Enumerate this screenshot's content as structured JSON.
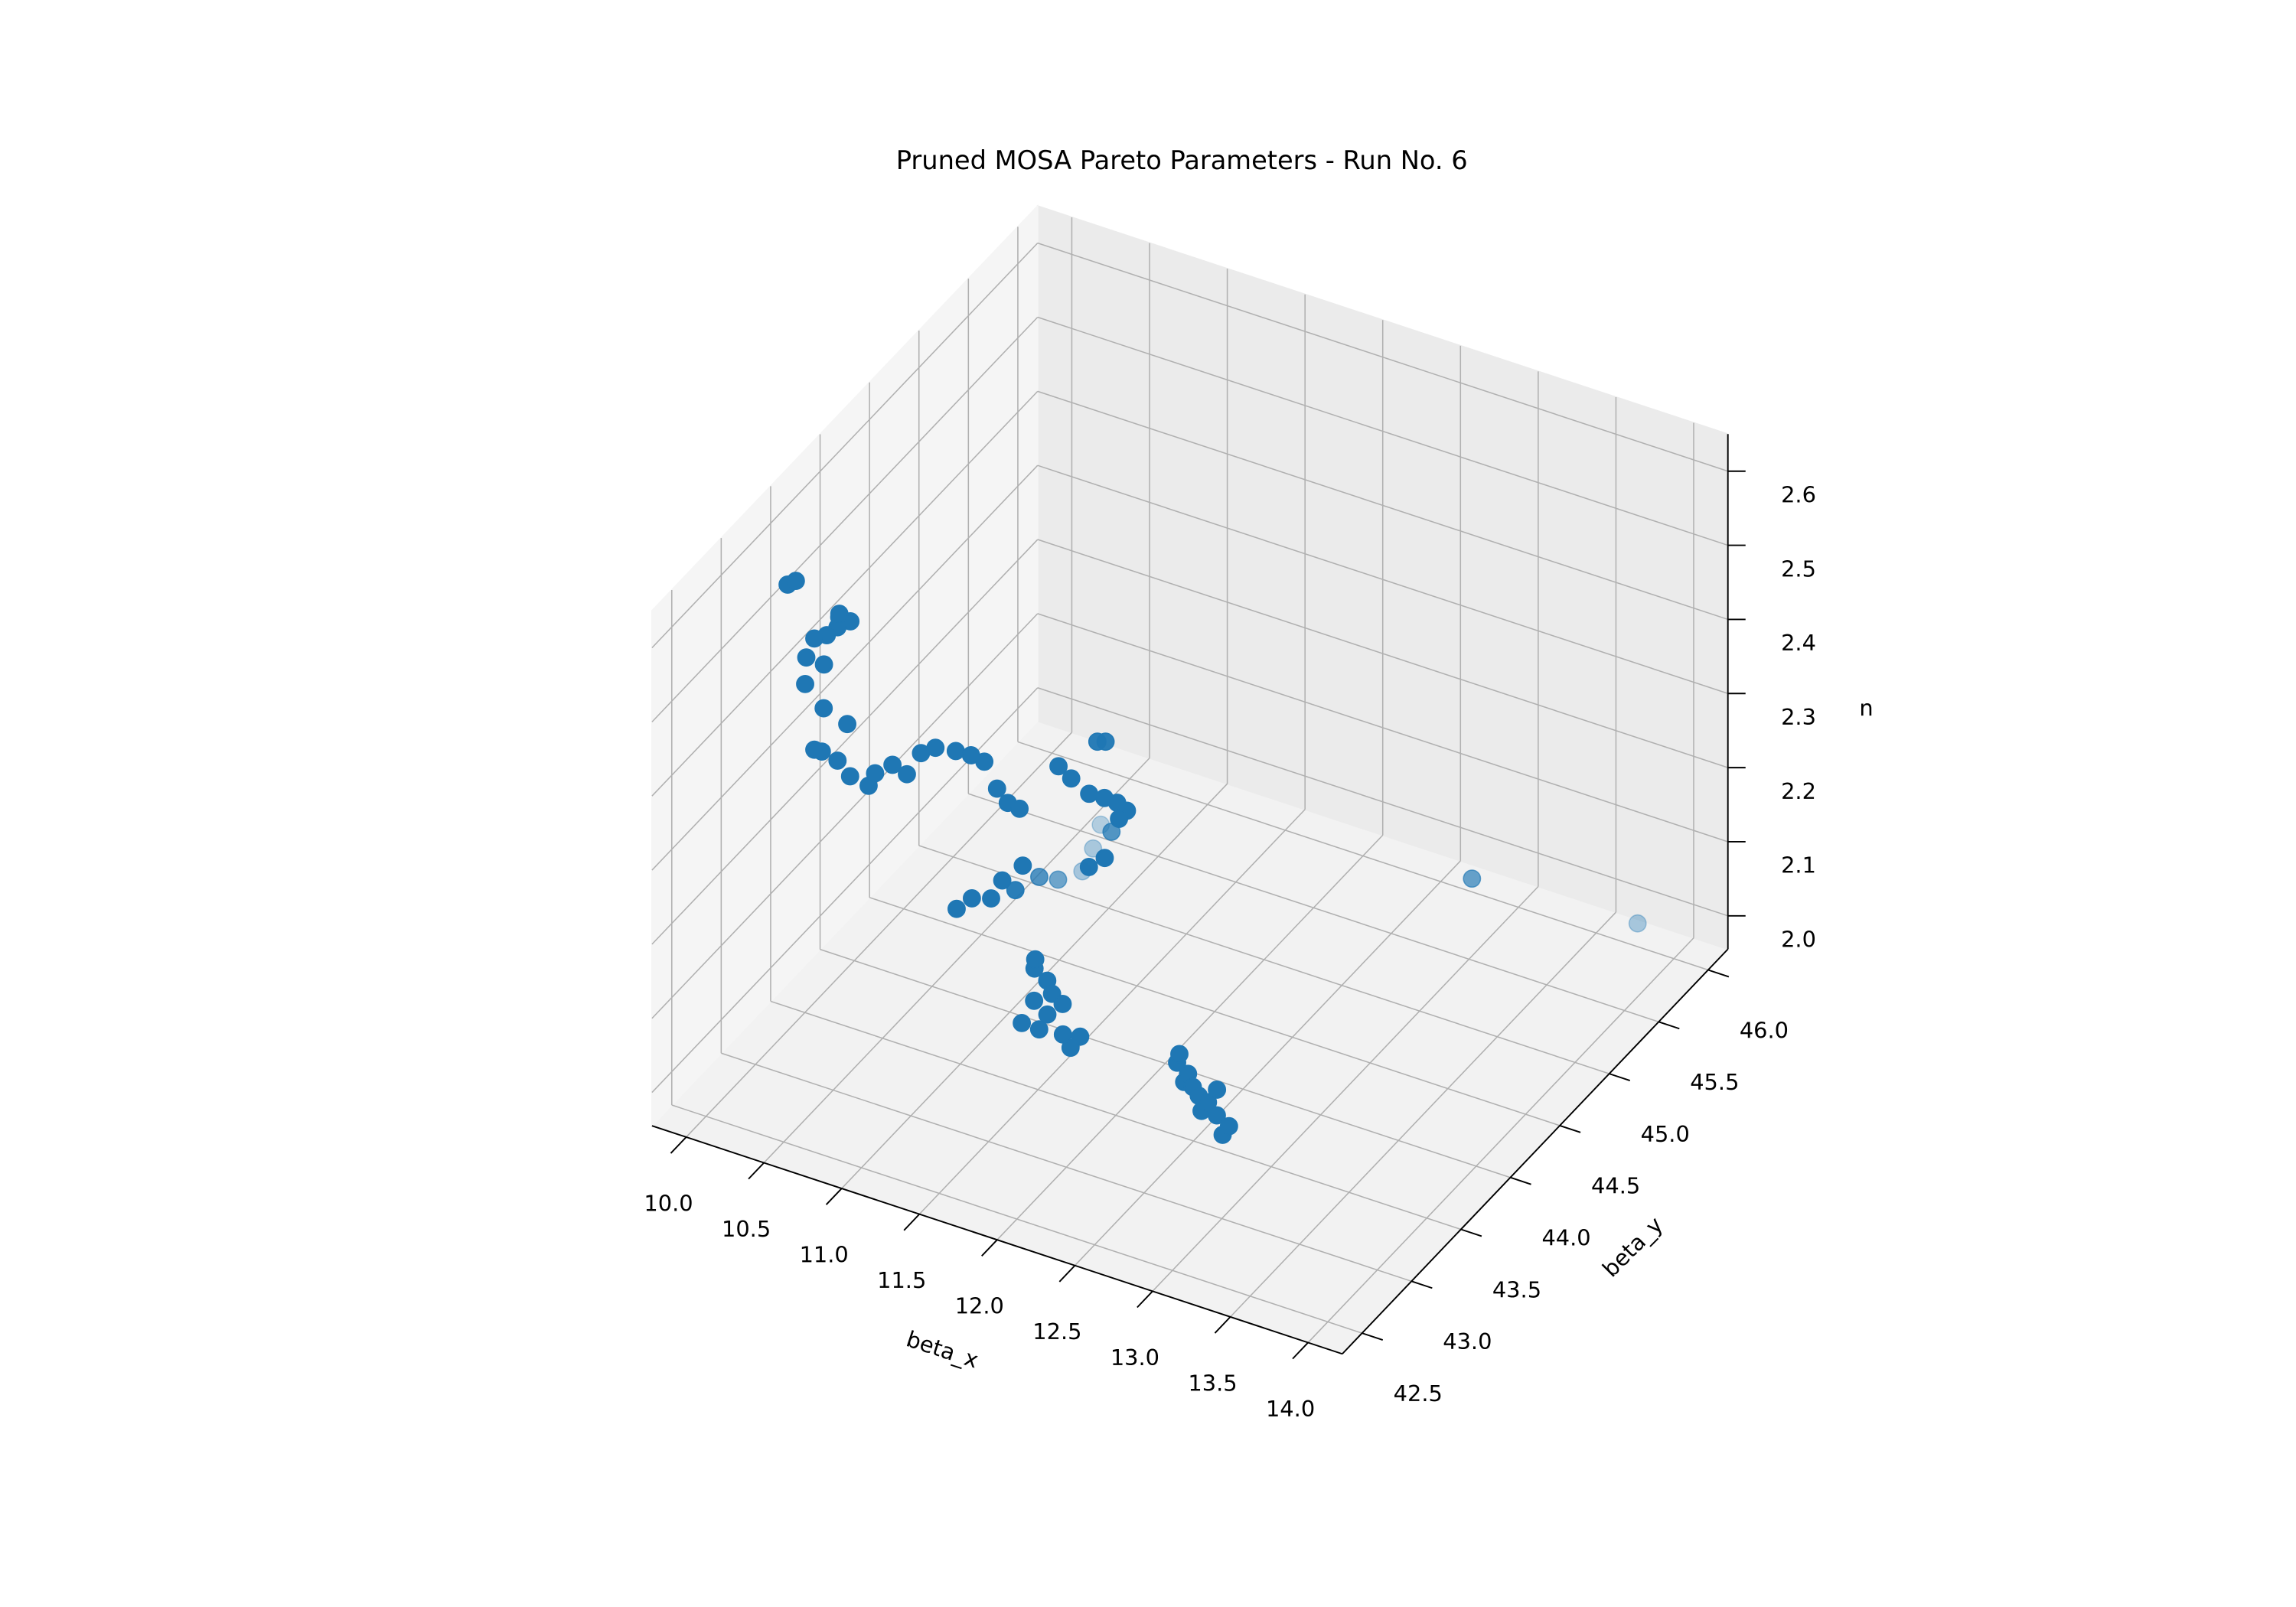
{
  "chart_data": {
    "type": "scatter3d",
    "title": "Pruned MOSA Pareto Parameters - Run No. 6",
    "xlabel": "beta_x",
    "ylabel": "beta_y",
    "zlabel": "n",
    "color": "#1f77b4",
    "depthshade": true,
    "grid": true,
    "xlim": [
      9.78,
      14.22
    ],
    "ylim": [
      42.3,
      46.2
    ],
    "zlim": [
      1.955,
      2.65
    ],
    "xticks": [
      {
        "value": 10,
        "label": "10.0"
      },
      10.5,
      {
        "value": 11,
        "label": "11.0"
      },
      11.5,
      {
        "value": 12,
        "label": "12.0"
      },
      12.5,
      {
        "value": 13,
        "label": "13.0"
      },
      13.5,
      {
        "value": 14,
        "label": "14.0"
      }
    ],
    "yticks": [
      42.5,
      {
        "value": 43,
        "label": "43.0"
      },
      43.5,
      {
        "value": 44,
        "label": "44.0"
      },
      44.5,
      {
        "value": 45,
        "label": "45.0"
      },
      45.5,
      {
        "value": 46,
        "label": "46.0"
      }
    ],
    "zticks": [
      {
        "value": 2,
        "label": "2.0"
      },
      2.1,
      2.2,
      2.3,
      2.4,
      2.5,
      2.6
    ],
    "x": [
      10.08,
      10.12,
      10.38,
      10.42,
      10.35,
      10.4,
      10.3,
      10.22,
      10.2,
      10.25,
      10.18,
      10.28,
      10.4,
      10.3,
      10.22,
      10.35,
      10.45,
      10.55,
      10.42,
      10.5,
      10.58,
      10.62,
      10.7,
      10.78,
      10.84,
      10.9,
      10.95,
      11.0,
      11.05,
      11.25,
      11.3,
      11.39,
      11.45,
      11.5,
      11.55,
      11.48,
      11.4,
      11.42,
      11.35,
      11.36,
      11.4,
      10.76,
      10.82,
      10.88,
      10.92,
      10.96,
      11.05,
      11.12,
      11.2,
      11.25,
      11.28,
      11.02,
      11.38,
      11.42,
      11.36,
      11.4,
      11.45,
      11.35,
      11.38,
      11.48,
      11.3,
      11.55,
      11.58,
      11.52,
      12.21,
      12.25,
      12.3,
      12.35,
      12.4,
      12.47,
      12.52,
      12.58,
      12.65,
      12.7,
      12.76,
      12.6,
      13.14,
      13.9
    ],
    "y": [
      43.2,
      43.22,
      43.25,
      43.3,
      43.28,
      43.22,
      43.25,
      43.25,
      43.2,
      43.3,
      43.22,
      43.25,
      43.3,
      43.2,
      43.25,
      43.28,
      43.25,
      43.28,
      43.55,
      43.6,
      43.62,
      43.7,
      43.72,
      43.8,
      43.86,
      43.9,
      43.95,
      43.98,
      44.02,
      44.1,
      44.15,
      44.19,
      44.25,
      44.3,
      44.32,
      44.35,
      44.4,
      44.3,
      44.25,
      44.32,
      44.34,
      43.84,
      43.9,
      44.0,
      44.05,
      44.12,
      44.22,
      44.3,
      44.42,
      44.45,
      44.48,
      44.1,
      43.7,
      43.72,
      43.68,
      43.75,
      43.72,
      43.7,
      43.66,
      43.78,
      43.65,
      43.75,
      43.8,
      43.72,
      43.79,
      43.75,
      43.72,
      43.68,
      43.65,
      43.6,
      43.55,
      43.52,
      43.5,
      43.48,
      43.45,
      43.58,
      45.31,
      45.79
    ],
    "z": [
      2.58,
      2.585,
      2.55,
      2.54,
      2.53,
      2.56,
      2.52,
      2.51,
      2.49,
      2.47,
      2.45,
      2.42,
      2.4,
      2.37,
      2.36,
      2.35,
      2.34,
      2.33,
      2.3,
      2.31,
      2.3,
      2.32,
      2.33,
      2.32,
      2.31,
      2.3,
      2.26,
      2.24,
      2.23,
      2.29,
      2.27,
      2.25,
      2.24,
      2.23,
      2.22,
      2.2,
      2.17,
      2.15,
      2.14,
      2.3,
      2.3,
      2.1,
      2.11,
      2.1,
      2.12,
      2.1,
      2.11,
      2.1,
      2.1,
      2.13,
      2.16,
      2.14,
      2.0,
      2.02,
      2.04,
      2.06,
      2.05,
      2.08,
      2.1,
      2.03,
      2.01,
      1.98,
      1.99,
      2.0,
      2.0,
      2.02,
      1.99,
      2.01,
      2.0,
      2.0,
      1.99,
      2.01,
      2.0,
      1.98,
      2.0,
      2.02,
      2.1,
      2.025
    ]
  }
}
